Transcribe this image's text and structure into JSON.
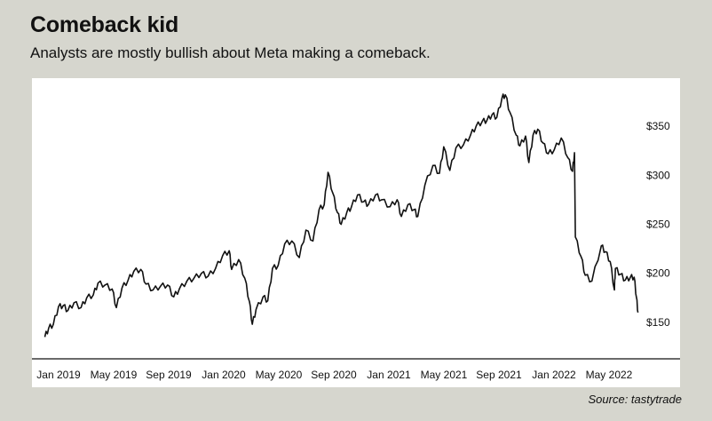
{
  "header": {
    "title": "Comeback kid",
    "subtitle": "Analysts are mostly bullish about Meta making a comeback."
  },
  "footer": {
    "source": "Source: tastytrade"
  },
  "colors": {
    "background": "#d6d6ce",
    "panel": "#ffffff",
    "line": "#111111"
  },
  "chart_data": {
    "type": "line",
    "title": "",
    "xlabel": "",
    "ylabel": "",
    "x_tick_labels": [
      "Jan 2019",
      "May 2019",
      "Sep 2019",
      "Jan 2020",
      "May 2020",
      "Sep 2020",
      "Jan 2021",
      "May 2021",
      "Sep 2021",
      "Jan 2022",
      "May 2022"
    ],
    "y_ticks": [
      150,
      200,
      250,
      300,
      350
    ],
    "y_tick_labels": [
      "$150",
      "$200",
      "$250",
      "$300",
      "$350"
    ],
    "y_axis_side": "right",
    "xlim": [
      "2019-01-01",
      "2022-06-30"
    ],
    "ylim": [
      120,
      390
    ],
    "grid": false,
    "series": [
      {
        "values": [
          [
            "2019-01-02",
            135
          ],
          [
            "2019-01-10",
            144
          ],
          [
            "2019-01-20",
            148
          ],
          [
            "2019-01-31",
            166
          ],
          [
            "2019-02-10",
            167
          ],
          [
            "2019-02-20",
            162
          ],
          [
            "2019-03-05",
            170
          ],
          [
            "2019-03-20",
            165
          ],
          [
            "2019-04-01",
            175
          ],
          [
            "2019-04-15",
            178
          ],
          [
            "2019-04-25",
            190
          ],
          [
            "2019-05-10",
            188
          ],
          [
            "2019-05-25",
            184
          ],
          [
            "2019-06-03",
            165
          ],
          [
            "2019-06-15",
            185
          ],
          [
            "2019-06-28",
            193
          ],
          [
            "2019-07-10",
            202
          ],
          [
            "2019-07-25",
            204
          ],
          [
            "2019-08-05",
            189
          ],
          [
            "2019-08-20",
            183
          ],
          [
            "2019-09-05",
            187
          ],
          [
            "2019-09-20",
            188
          ],
          [
            "2019-10-03",
            176
          ],
          [
            "2019-10-15",
            184
          ],
          [
            "2019-10-31",
            192
          ],
          [
            "2019-11-15",
            195
          ],
          [
            "2019-12-01",
            200
          ],
          [
            "2019-12-15",
            197
          ],
          [
            "2019-12-31",
            205
          ],
          [
            "2020-01-15",
            218
          ],
          [
            "2020-01-29",
            223
          ],
          [
            "2020-02-03",
            204
          ],
          [
            "2020-02-18",
            214
          ],
          [
            "2020-03-02",
            195
          ],
          [
            "2020-03-12",
            171
          ],
          [
            "2020-03-18",
            148
          ],
          [
            "2020-03-26",
            163
          ],
          [
            "2020-04-10",
            176
          ],
          [
            "2020-04-20",
            172
          ],
          [
            "2020-04-30",
            205
          ],
          [
            "2020-05-12",
            208
          ],
          [
            "2020-05-26",
            230
          ],
          [
            "2020-06-10",
            233
          ],
          [
            "2020-06-26",
            216
          ],
          [
            "2020-07-10",
            244
          ],
          [
            "2020-07-25",
            233
          ],
          [
            "2020-08-07",
            265
          ],
          [
            "2020-08-18",
            270
          ],
          [
            "2020-08-26",
            303
          ],
          [
            "2020-09-05",
            282
          ],
          [
            "2020-09-15",
            262
          ],
          [
            "2020-09-23",
            250
          ],
          [
            "2020-10-05",
            262
          ],
          [
            "2020-10-15",
            268
          ],
          [
            "2020-10-28",
            280
          ],
          [
            "2020-11-10",
            273
          ],
          [
            "2020-11-20",
            270
          ],
          [
            "2020-12-05",
            280
          ],
          [
            "2020-12-18",
            275
          ],
          [
            "2021-01-05",
            268
          ],
          [
            "2021-01-20",
            275
          ],
          [
            "2021-01-29",
            258
          ],
          [
            "2021-02-12",
            270
          ],
          [
            "2021-02-25",
            265
          ],
          [
            "2021-03-05",
            258
          ],
          [
            "2021-03-20",
            290
          ],
          [
            "2021-04-06",
            310
          ],
          [
            "2021-04-20",
            302
          ],
          [
            "2021-04-29",
            329
          ],
          [
            "2021-05-12",
            305
          ],
          [
            "2021-05-25",
            328
          ],
          [
            "2021-06-10",
            331
          ],
          [
            "2021-06-25",
            341
          ],
          [
            "2021-07-07",
            350
          ],
          [
            "2021-07-20",
            355
          ],
          [
            "2021-07-30",
            356
          ],
          [
            "2021-08-10",
            362
          ],
          [
            "2021-08-20",
            359
          ],
          [
            "2021-08-31",
            379
          ],
          [
            "2021-09-07",
            382
          ],
          [
            "2021-09-17",
            364
          ],
          [
            "2021-09-30",
            341
          ],
          [
            "2021-10-08",
            330
          ],
          [
            "2021-10-20",
            340
          ],
          [
            "2021-10-27",
            313
          ],
          [
            "2021-11-05",
            341
          ],
          [
            "2021-11-15",
            347
          ],
          [
            "2021-11-26",
            333
          ],
          [
            "2021-12-07",
            322
          ],
          [
            "2021-12-20",
            326
          ],
          [
            "2022-01-04",
            338
          ],
          [
            "2022-01-18",
            318
          ],
          [
            "2022-01-28",
            304
          ],
          [
            "2022-02-01",
            323
          ],
          [
            "2022-02-03",
            237
          ],
          [
            "2022-02-15",
            217
          ],
          [
            "2022-02-24",
            198
          ],
          [
            "2022-03-10",
            192
          ],
          [
            "2022-03-30",
            228
          ],
          [
            "2022-04-08",
            222
          ],
          [
            "2022-04-18",
            212
          ],
          [
            "2022-04-27",
            183
          ],
          [
            "2022-04-29",
            205
          ],
          [
            "2022-05-10",
            199
          ],
          [
            "2022-05-20",
            193
          ],
          [
            "2022-05-31",
            196
          ],
          [
            "2022-06-08",
            196
          ],
          [
            "2022-06-13",
            175
          ],
          [
            "2022-06-16",
            160
          ]
        ]
      }
    ]
  }
}
